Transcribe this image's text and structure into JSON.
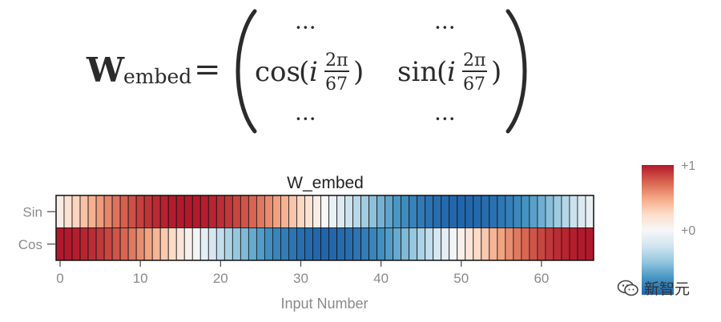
{
  "formula": {
    "lhs_symbol": "W",
    "lhs_subscript": "embed",
    "equals": "=",
    "dots": "···",
    "cos_fn": "cos",
    "sin_fn": "sin",
    "open_paren": "(",
    "close_paren": ")",
    "var_i": "i",
    "frac_num": "2π",
    "frac_den": "67"
  },
  "chart_data": {
    "type": "heatmap",
    "title": "W_embed",
    "xlabel": "Input Number",
    "ylabel": "",
    "rows": [
      "Sin",
      "Cos"
    ],
    "n_columns": 67,
    "x_ticks": [
      "0",
      "10",
      "20",
      "30",
      "40",
      "50",
      "60"
    ],
    "x_tick_values": [
      0,
      10,
      20,
      30,
      40,
      50,
      60
    ],
    "values": {
      "Sin": [
        0.094,
        0.187,
        0.279,
        0.368,
        0.454,
        0.536,
        0.613,
        0.685,
        0.75,
        0.809,
        0.86,
        0.904,
        0.939,
        0.966,
        0.985,
        0.996,
        1.0,
        0.994,
        0.98,
        0.958,
        0.927,
        0.889,
        0.844,
        0.791,
        0.732,
        0.666,
        0.595,
        0.519,
        0.439,
        0.355,
        0.269,
        0.18,
        0.09,
        0.0,
        -0.09,
        -0.18,
        -0.269,
        -0.355,
        -0.439,
        -0.519,
        -0.595,
        -0.666,
        -0.732,
        -0.791,
        -0.844,
        -0.889,
        -0.927,
        -0.958,
        -0.98,
        -0.994,
        -1.0,
        -0.996,
        -0.985,
        -0.966,
        -0.939,
        -0.904,
        -0.86,
        -0.809,
        -0.75,
        -0.685,
        -0.613,
        -0.536,
        -0.454,
        -0.368,
        -0.279,
        -0.187,
        -0.094
      ],
      "Cos": [
        1.0,
        0.996,
        0.982,
        0.96,
        0.93,
        0.891,
        0.844,
        0.79,
        0.729,
        0.661,
        0.588,
        0.509,
        0.426,
        0.339,
        0.249,
        0.157,
        0.063,
        -0.031,
        -0.125,
        -0.218,
        -0.309,
        -0.397,
        -0.482,
        -0.562,
        -0.637,
        -0.707,
        -0.771,
        -0.828,
        -0.878,
        -0.92,
        -0.954,
        -0.979,
        -0.995,
        -1.0,
        -0.995,
        -0.979,
        -0.954,
        -0.92,
        -0.878,
        -0.828,
        -0.771,
        -0.707,
        -0.637,
        -0.562,
        -0.482,
        -0.397,
        -0.309,
        -0.218,
        -0.125,
        -0.031,
        0.063,
        0.157,
        0.249,
        0.339,
        0.426,
        0.509,
        0.588,
        0.661,
        0.729,
        0.79,
        0.844,
        0.891,
        0.93,
        0.96,
        0.982,
        0.996,
        1.0
      ]
    },
    "colorscale": [
      "#2166ac",
      "#4393c3",
      "#92c5de",
      "#d1e5f0",
      "#f7f7f7",
      "#fddbc7",
      "#f4a582",
      "#d6604d",
      "#b2182b"
    ],
    "colorbar_ticks": [
      "+1",
      "+0"
    ],
    "colorbar_tick_values": [
      1,
      0
    ],
    "zrange": [
      -1,
      1
    ],
    "grid": false
  },
  "watermark": {
    "text": "新智元",
    "icon": "wechat-logo-icon"
  },
  "colors": {
    "axis_text": "#8a8a8a",
    "title_text": "#222222",
    "cell_border": "#111111",
    "formula_text": "#2b2b2b"
  }
}
